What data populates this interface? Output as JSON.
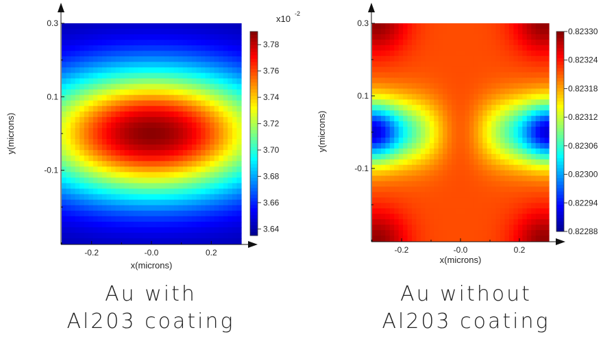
{
  "chart_data": [
    {
      "type": "heatmap",
      "title": "",
      "xlabel": "x(microns)",
      "ylabel": "y(microns)",
      "x_ticks": [
        "-0.2",
        "-0.0",
        "0.2"
      ],
      "y_ticks": [
        "0.3",
        "0.1",
        "-0.1"
      ],
      "xlim": [
        -0.3,
        0.3
      ],
      "ylim": [
        -0.3,
        0.3
      ],
      "colorbar": {
        "range": [
          3.635,
          3.79
        ],
        "ticks": [
          "3.64",
          "3.66",
          "3.68",
          "3.70",
          "3.72",
          "3.74",
          "3.76",
          "3.78"
        ],
        "exponent_label": "x10",
        "exponent": "-2"
      },
      "pattern": "central-maximum",
      "caption": [
        "Au  with",
        "Al203  coating"
      ]
    },
    {
      "type": "heatmap",
      "title": "",
      "xlabel": "x(microns)",
      "ylabel": "y(microns)",
      "x_ticks": [
        "-0.2",
        "-0.0",
        "0.2"
      ],
      "y_ticks": [
        "0.3",
        "0.1",
        "-0.1"
      ],
      "xlim": [
        -0.3,
        0.3
      ],
      "ylim": [
        -0.3,
        0.3
      ],
      "colorbar": {
        "range": [
          0.82288,
          0.8233
        ],
        "ticks": [
          "0.82288",
          "0.82294",
          "0.82300",
          "0.82306",
          "0.82312",
          "0.82318",
          "0.82324",
          "0.82330"
        ]
      },
      "pattern": "side-minima",
      "caption": [
        "Au  without",
        "Al203  coating"
      ]
    }
  ],
  "colormap": [
    "#00008f",
    "#0000ff",
    "#00ffff",
    "#ffff00",
    "#ff0000",
    "#800000"
  ]
}
